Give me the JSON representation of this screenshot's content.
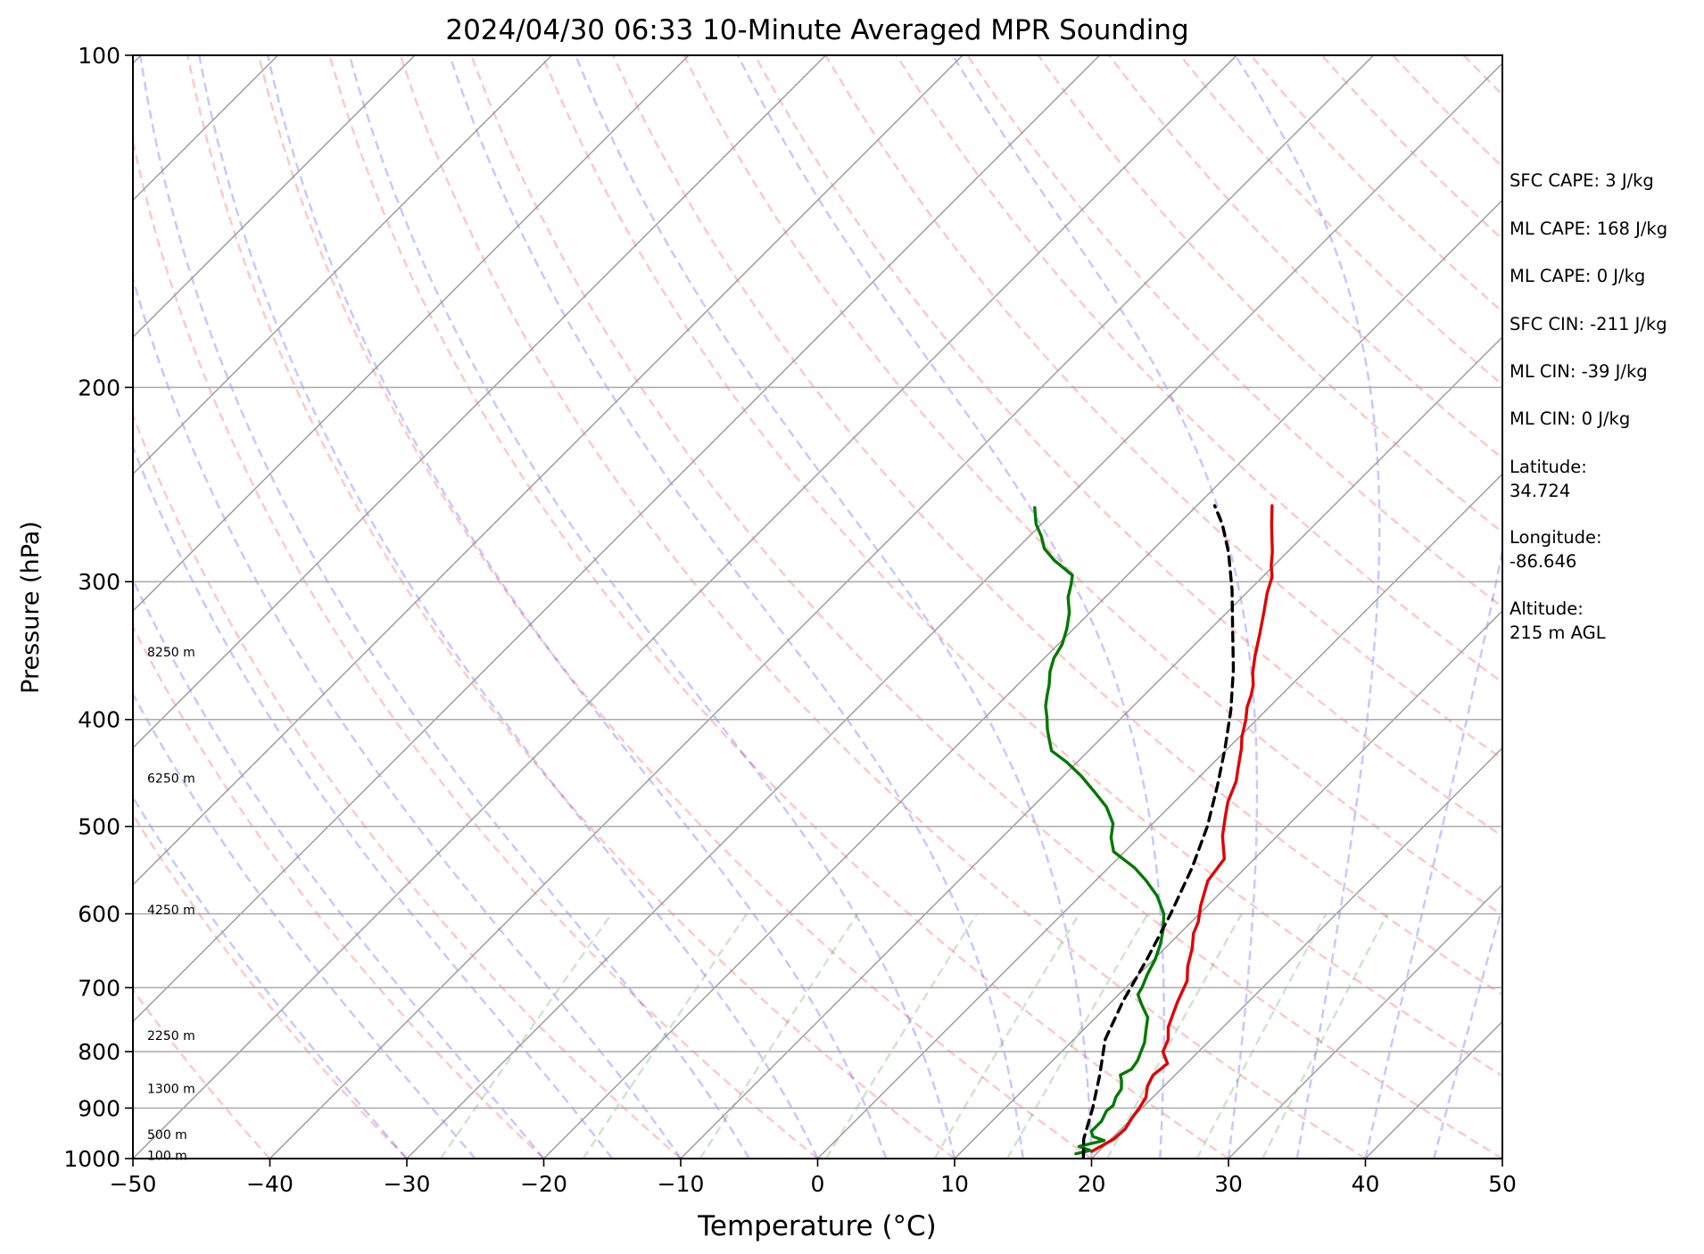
{
  "chart_data": {
    "type": "line",
    "title": "2024/04/30 06:33 10-Minute Averaged MPR Sounding",
    "xlabel": "Temperature (°C)",
    "ylabel": "Pressure (hPa)",
    "xlim": [
      -50,
      50
    ],
    "ylim": [
      1000,
      100
    ],
    "y_scale": "log",
    "skew": "skew-T log-P",
    "grid": true,
    "x_ticks": [
      "−50",
      "−40",
      "−30",
      "−20",
      "−10",
      "0",
      "10",
      "20",
      "30",
      "40",
      "50"
    ],
    "y_ticks": [
      "100",
      "200",
      "300",
      "400",
      "500",
      "600",
      "700",
      "800",
      "900",
      "1000"
    ],
    "height_labels": [
      {
        "label": "100 m",
        "p": 995
      },
      {
        "label": "500 m",
        "p": 953
      },
      {
        "label": "1300 m",
        "p": 866
      },
      {
        "label": "2250 m",
        "p": 775
      },
      {
        "label": "4250 m",
        "p": 596
      },
      {
        "label": "6250 m",
        "p": 453
      },
      {
        "label": "8250 m",
        "p": 348
      }
    ],
    "series": [
      {
        "color": "#e00000",
        "points": [
          [
            19.5,
            985
          ],
          [
            20.2,
            960
          ],
          [
            20.3,
            940
          ],
          [
            20.0,
            920
          ],
          [
            19.8,
            900
          ],
          [
            19.5,
            880
          ],
          [
            18.8,
            860
          ],
          [
            18.4,
            840
          ],
          [
            18.6,
            820
          ],
          [
            17.4,
            800
          ],
          [
            16.9,
            780
          ],
          [
            16.0,
            760
          ],
          [
            15.4,
            740
          ],
          [
            14.8,
            720
          ],
          [
            14.0,
            690
          ],
          [
            13.0,
            670
          ],
          [
            12.0,
            645
          ],
          [
            11.0,
            625
          ],
          [
            10.5,
            610
          ],
          [
            9.5,
            590
          ],
          [
            8.2,
            560
          ],
          [
            7.8,
            535
          ],
          [
            6.0,
            510
          ],
          [
            4.8,
            490
          ],
          [
            3.9,
            475
          ],
          [
            3.0,
            455
          ],
          [
            2.2,
            443
          ],
          [
            1.0,
            425
          ],
          [
            0.2,
            415
          ],
          [
            -0.8,
            400
          ],
          [
            -1.6,
            390
          ],
          [
            -2.2,
            380
          ],
          [
            -2.8,
            372
          ],
          [
            -3.7,
            363
          ],
          [
            -4.8,
            350
          ],
          [
            -6.0,
            335
          ],
          [
            -7.3,
            320
          ],
          [
            -8.5,
            307
          ],
          [
            -9.3,
            297
          ],
          [
            -10.2,
            290
          ],
          [
            -11.1,
            282
          ],
          [
            -12.0,
            275
          ],
          [
            -13.2,
            266
          ],
          [
            -14.5,
            256
          ]
        ]
      },
      {
        "color": "#007800",
        "points": [
          [
            18.5,
            990
          ],
          [
            19.3,
            983
          ],
          [
            18.2,
            975
          ],
          [
            19.6,
            963
          ],
          [
            18.5,
            955
          ],
          [
            18.0,
            945
          ],
          [
            18.0,
            925
          ],
          [
            17.6,
            905
          ],
          [
            17.7,
            895
          ],
          [
            17.3,
            880
          ],
          [
            17.1,
            865
          ],
          [
            16.5,
            850
          ],
          [
            16.0,
            840
          ],
          [
            16.4,
            830
          ],
          [
            16.2,
            815
          ],
          [
            15.8,
            800
          ],
          [
            15.4,
            785
          ],
          [
            14.6,
            765
          ],
          [
            13.8,
            745
          ],
          [
            12.4,
            725
          ],
          [
            11.4,
            710
          ],
          [
            11.2,
            700
          ],
          [
            10.6,
            680
          ],
          [
            10.1,
            660
          ],
          [
            9.4,
            640
          ],
          [
            8.5,
            620
          ],
          [
            7.4,
            600
          ],
          [
            5.6,
            578
          ],
          [
            3.7,
            560
          ],
          [
            1.9,
            545
          ],
          [
            -0.8,
            527
          ],
          [
            -2.0,
            512
          ],
          [
            -2.9,
            497
          ],
          [
            -4.6,
            480
          ],
          [
            -6.6,
            465
          ],
          [
            -8.7,
            450
          ],
          [
            -10.8,
            437
          ],
          [
            -12.7,
            427
          ],
          [
            -13.6,
            418
          ],
          [
            -14.6,
            408
          ],
          [
            -15.5,
            398
          ],
          [
            -16.4,
            389
          ],
          [
            -17.1,
            380
          ],
          [
            -17.7,
            372
          ],
          [
            -18.6,
            362
          ],
          [
            -19.3,
            352
          ],
          [
            -19.7,
            342
          ],
          [
            -20.5,
            331
          ],
          [
            -21.5,
            320
          ],
          [
            -22.7,
            310
          ],
          [
            -23.4,
            302
          ],
          [
            -24.0,
            296
          ],
          [
            -26.4,
            287
          ],
          [
            -28.0,
            280
          ],
          [
            -29.1,
            273
          ],
          [
            -30.4,
            266
          ],
          [
            -31.7,
            257
          ]
        ]
      },
      {
        "color": "#000000",
        "dashed": true,
        "points": [
          [
            19.4,
            1000
          ],
          [
            18.0,
            960
          ],
          [
            16.4,
            900
          ],
          [
            14.5,
            840
          ],
          [
            12.3,
            780
          ],
          [
            10.8,
            720
          ],
          [
            9.5,
            660
          ],
          [
            7.9,
            600
          ],
          [
            6.1,
            545
          ],
          [
            4.2,
            500
          ],
          [
            2.0,
            460
          ],
          [
            -0.2,
            425
          ],
          [
            -2.6,
            392
          ],
          [
            -5.4,
            360
          ],
          [
            -8.5,
            330
          ],
          [
            -11.3,
            305
          ],
          [
            -14.3,
            282
          ],
          [
            -16.8,
            266
          ],
          [
            -18.7,
            256
          ]
        ]
      }
    ]
  },
  "annotations": [
    "SFC CAPE: 3 J/kg",
    "ML CAPE: 168 J/kg",
    "ML CAPE: 0 J/kg",
    "SFC CIN: -211 J/kg",
    "ML CIN: -39 J/kg",
    "ML CIN: 0 J/kg",
    [
      "Latitude:",
      "34.724"
    ],
    [
      "Longitude:",
      "-86.646"
    ],
    [
      "Altitude:",
      "215 m AGL"
    ]
  ]
}
